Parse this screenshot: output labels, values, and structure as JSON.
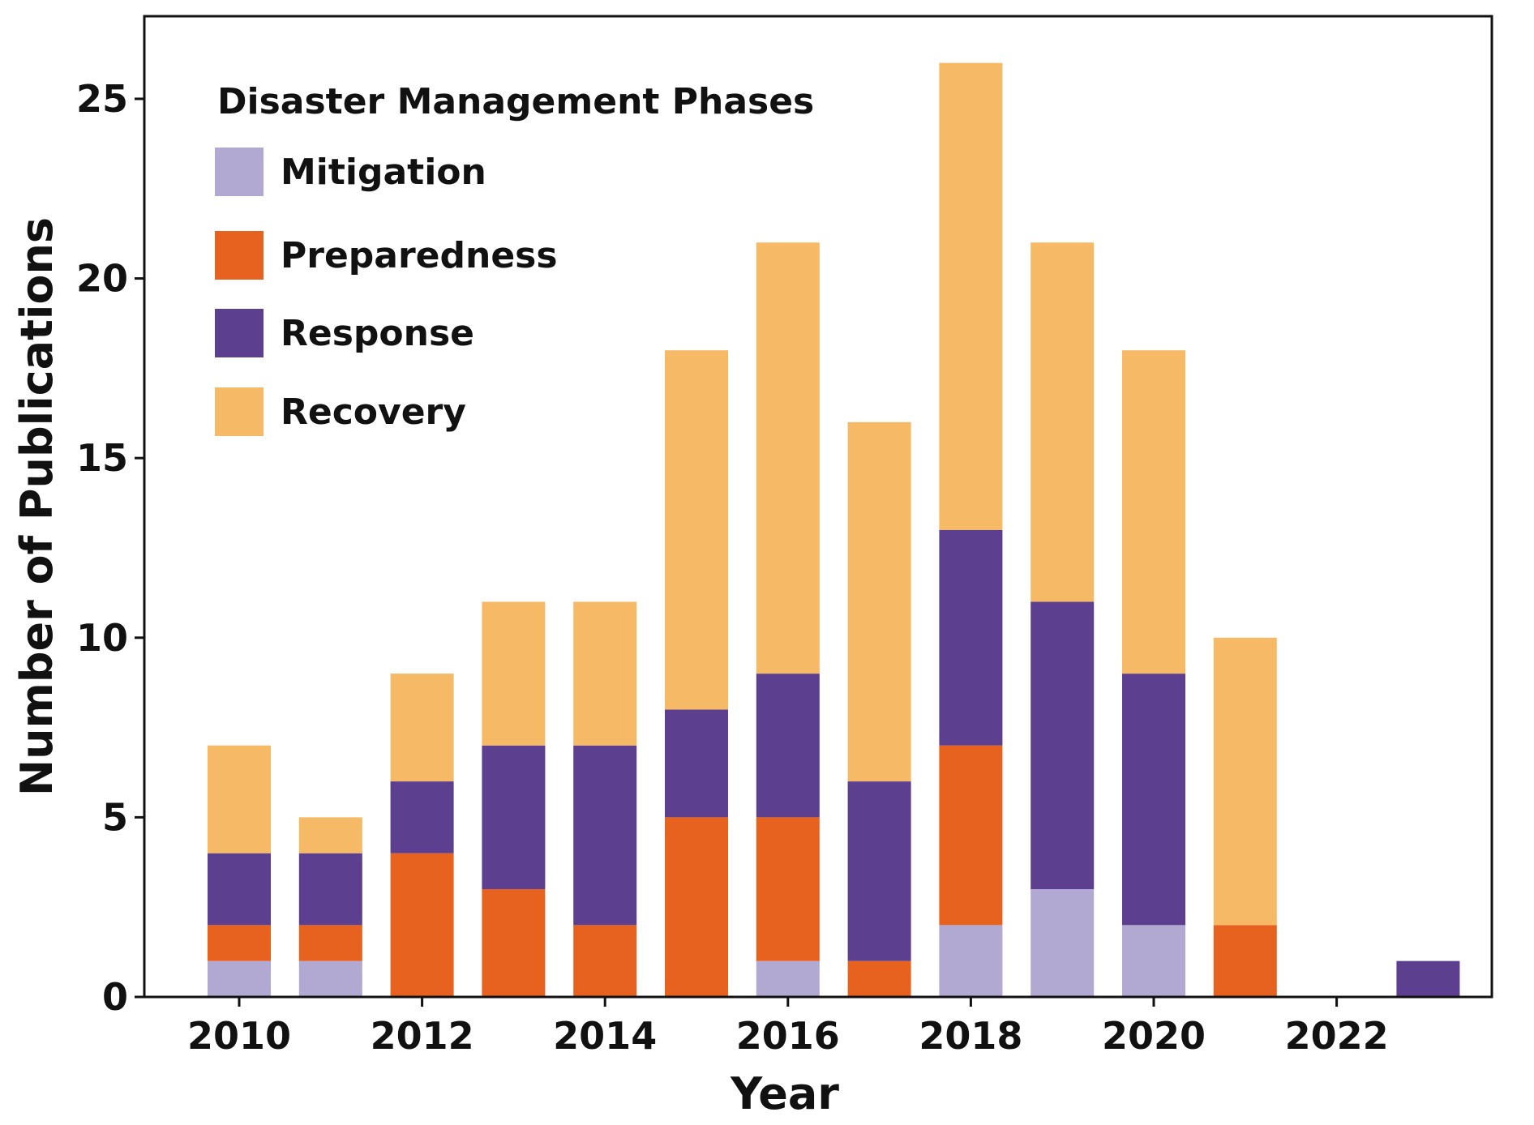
{
  "chart_data": {
    "type": "bar",
    "stacked": true,
    "categories": [
      "2010",
      "2011",
      "2012",
      "2013",
      "2014",
      "2015",
      "2016",
      "2017",
      "2018",
      "2019",
      "2020",
      "2021",
      "2022",
      "2023"
    ],
    "series": [
      {
        "name": "Mitigation",
        "color": "#b2a9d3",
        "values": [
          1,
          1,
          0,
          0,
          0,
          0,
          1,
          0,
          2,
          3,
          2,
          0,
          0,
          0
        ]
      },
      {
        "name": "Preparedness",
        "color": "#e8621f",
        "values": [
          1,
          1,
          4,
          3,
          2,
          5,
          4,
          1,
          5,
          0,
          0,
          2,
          0,
          0
        ]
      },
      {
        "name": "Response",
        "color": "#5d3f90",
        "values": [
          2,
          2,
          2,
          4,
          5,
          3,
          4,
          5,
          6,
          8,
          7,
          0,
          0,
          1
        ]
      },
      {
        "name": "Recovery",
        "color": "#f6b965",
        "values": [
          3,
          1,
          3,
          4,
          4,
          10,
          12,
          10,
          13,
          10,
          9,
          8,
          0,
          0
        ]
      }
    ],
    "x_tick_labels": [
      "2010",
      "2012",
      "2014",
      "2016",
      "2018",
      "2020",
      "2022"
    ],
    "y_ticks": [
      0,
      5,
      10,
      15,
      20,
      25
    ],
    "ylim": [
      0,
      27.3
    ],
    "xlabel": "Year",
    "ylabel": "Number of Publications",
    "legend": {
      "title": "Disaster Management Phases",
      "placement": "top-left"
    }
  }
}
